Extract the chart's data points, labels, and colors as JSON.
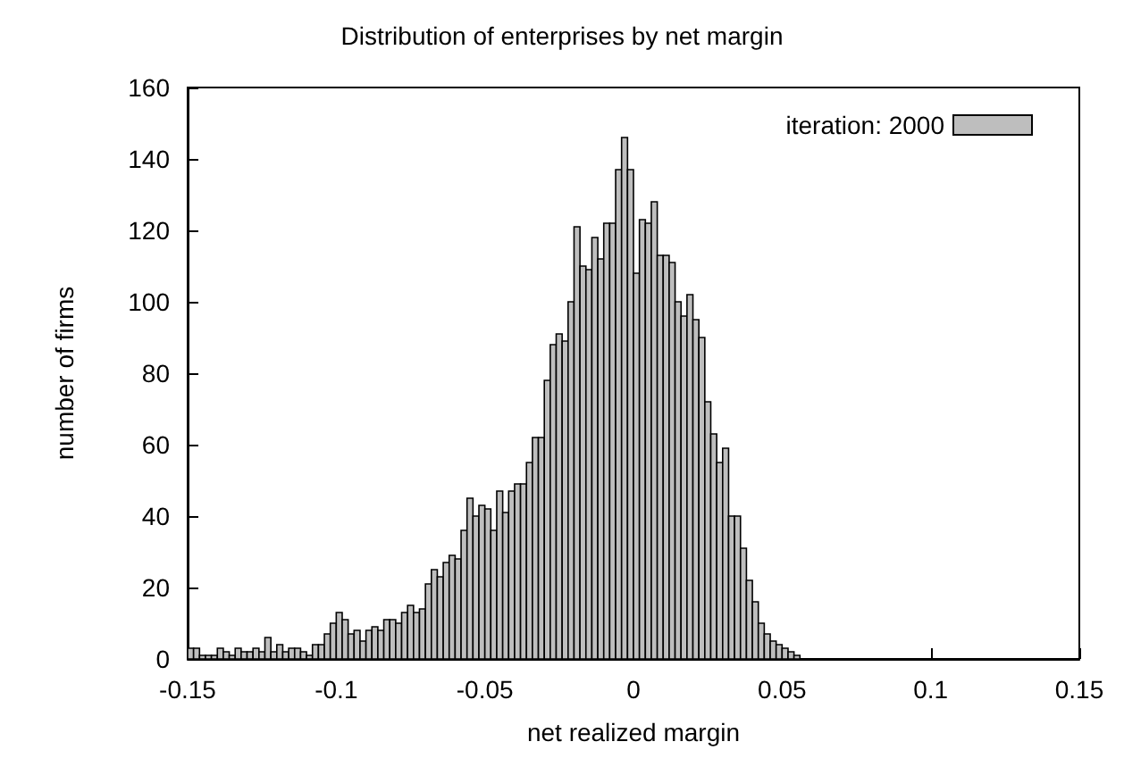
{
  "chart_data": {
    "type": "histogram",
    "title": "Distribution of enterprises by net margin",
    "xlabel": "net realized margin",
    "ylabel": "number of firms",
    "bins": [
      -0.15,
      -0.148,
      -0.146,
      -0.144,
      -0.142,
      -0.14,
      -0.138,
      -0.136,
      -0.134,
      -0.132,
      -0.13,
      -0.128,
      -0.126,
      -0.124,
      -0.122,
      -0.12,
      -0.118,
      -0.116,
      -0.114,
      -0.112,
      -0.11,
      -0.108,
      -0.106,
      -0.104,
      -0.102,
      -0.1,
      -0.098,
      -0.096,
      -0.094,
      -0.092,
      -0.09,
      -0.088,
      -0.086,
      -0.084,
      -0.082,
      -0.08,
      -0.078,
      -0.076,
      -0.074,
      -0.072,
      -0.07,
      -0.068,
      -0.066,
      -0.064,
      -0.062,
      -0.06,
      -0.058,
      -0.056,
      -0.054,
      -0.052,
      -0.05,
      -0.048,
      -0.046,
      -0.044,
      -0.042,
      -0.04,
      -0.038,
      -0.036,
      -0.034,
      -0.032,
      -0.03,
      -0.028,
      -0.026,
      -0.024,
      -0.022,
      -0.02,
      -0.018,
      -0.016,
      -0.014,
      -0.012,
      -0.01,
      -0.008,
      -0.006,
      -0.004,
      -0.002,
      0,
      0.002,
      0.004,
      0.006,
      0.008,
      0.01,
      0.012,
      0.014,
      0.016,
      0.018,
      0.02,
      0.022,
      0.024,
      0.026,
      0.028,
      0.03,
      0.032,
      0.034,
      0.036,
      0.038,
      0.04,
      0.042,
      0.044,
      0.046,
      0.048,
      0.05,
      0.052,
      0.054,
      0.056,
      0.058,
      0.06,
      0.062,
      0.064,
      0.066,
      0.068,
      0.07,
      0.072,
      0.074,
      0.076,
      0.078,
      0.08,
      0.082,
      0.084,
      0.086,
      0.088,
      0.09,
      0.092,
      0.094,
      0.096,
      0.098,
      0.1,
      0.102,
      0.104,
      0.106,
      0.108,
      0.11,
      0.112,
      0.114,
      0.116,
      0.118,
      0.12,
      0.122,
      0.124,
      0.126,
      0.128,
      0.13,
      0.132,
      0.134,
      0.136,
      0.138,
      0.14,
      0.142,
      0.144,
      0.146,
      0.148,
      0.15
    ],
    "series": [
      {
        "name": "iteration: 2000",
        "color": "#bebebe",
        "values": [
          3,
          3,
          1,
          1,
          1,
          3,
          2,
          1,
          3,
          2,
          2,
          3,
          2,
          6,
          2,
          4,
          2,
          3,
          3,
          2,
          1,
          4,
          4,
          7,
          10,
          13,
          11,
          7,
          8,
          5,
          8,
          9,
          8,
          11,
          11,
          10,
          13,
          15,
          13,
          14,
          21,
          25,
          23,
          27,
          29,
          28,
          36,
          45,
          40,
          43,
          42,
          36,
          47,
          41,
          47,
          49,
          49,
          55,
          62,
          62,
          78,
          88,
          91,
          89,
          100,
          121,
          110,
          109,
          118,
          112,
          122,
          122,
          137,
          146,
          137,
          108,
          123,
          122,
          128,
          113,
          113,
          111,
          100,
          96,
          102,
          95,
          90,
          72,
          63,
          55,
          59,
          40,
          40,
          31,
          22,
          16,
          10,
          7,
          5,
          4,
          3,
          2,
          1,
          0,
          0,
          0,
          0,
          0,
          0,
          0,
          0,
          0,
          0,
          0,
          0,
          0,
          0,
          0,
          0,
          0,
          0,
          0,
          0,
          0,
          0,
          0,
          0,
          0,
          0,
          0,
          0,
          0,
          0,
          0,
          0,
          0,
          0,
          0,
          0,
          0,
          0,
          0,
          0,
          0,
          0,
          0,
          0,
          0,
          0,
          0
        ]
      }
    ],
    "xlim": [
      -0.15,
      0.15
    ],
    "xticks": [
      -0.15,
      -0.1,
      -0.05,
      0,
      0.05,
      0.1,
      0.15
    ],
    "ylim": [
      0,
      160
    ],
    "yticks": [
      0,
      20,
      40,
      60,
      80,
      100,
      120,
      140,
      160
    ],
    "grid": false,
    "legend": "top right"
  }
}
